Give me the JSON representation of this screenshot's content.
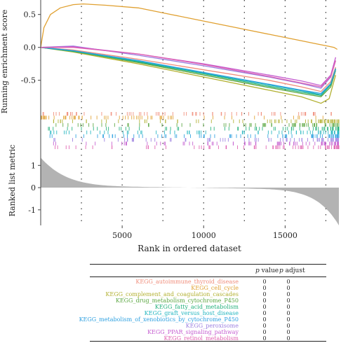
{
  "chart_data": {
    "type": "line",
    "ylabel_top": "Running enrichment score",
    "ylabel_bottom": "Ranked list metric",
    "xlabel": "Rank in ordered dataset",
    "x_ticks": [
      5000,
      10000,
      15000
    ],
    "x_tick_labels": [
      "5000",
      "10000",
      "15000"
    ],
    "xlim": [
      0,
      18300
    ],
    "es_y_ticks": [
      0.5,
      0.0,
      -0.5
    ],
    "es_y_tick_labels": [
      "0.5",
      "0.0",
      "-0.5"
    ],
    "es_ylim": [
      -0.95,
      0.72
    ],
    "metric_y_ticks": [
      1,
      0,
      -1
    ],
    "metric_y_tick_labels": [
      "1",
      "0",
      "-1"
    ],
    "metric_ylim": [
      -1.7,
      1.45
    ],
    "vlines": [
      2500,
      5000,
      7500,
      10000,
      12500,
      15000,
      17500
    ],
    "grid": "dotted vertical lines",
    "series": [
      {
        "name": "KEGG_autoimmune_thyroid_disease",
        "color": "#f08c7a",
        "x": [
          0,
          2000,
          6000,
          10000,
          14000,
          16000,
          17200,
          17800,
          18100
        ],
        "y": [
          0.0,
          -0.04,
          -0.18,
          -0.34,
          -0.5,
          -0.6,
          -0.67,
          -0.52,
          -0.3
        ]
      },
      {
        "name": "KEGG_cell_cycle",
        "color": "#e0a030",
        "x": [
          0,
          200,
          600,
          1200,
          2000,
          2600,
          4000,
          6000,
          8000,
          10000,
          12000,
          14000,
          16000,
          17000,
          17600,
          18000,
          18200
        ],
        "y": [
          0.0,
          0.3,
          0.5,
          0.6,
          0.65,
          0.66,
          0.64,
          0.6,
          0.5,
          0.4,
          0.3,
          0.2,
          0.1,
          0.05,
          0.02,
          0.0,
          -0.03
        ]
      },
      {
        "name": "KEGG_complement_and_coagulation_cascades",
        "color": "#b2b030",
        "x": [
          0,
          2000,
          6000,
          10000,
          14000,
          16000,
          17200,
          17700,
          18100
        ],
        "y": [
          0.0,
          -0.07,
          -0.25,
          -0.45,
          -0.65,
          -0.75,
          -0.85,
          -0.78,
          -0.42
        ]
      },
      {
        "name": "KEGG_drug_metabolism_cytochrome_P450",
        "color": "#5aa640",
        "x": [
          0,
          2000,
          6000,
          10000,
          14000,
          16000,
          17200,
          17800,
          18100
        ],
        "y": [
          0.0,
          -0.06,
          -0.23,
          -0.42,
          -0.61,
          -0.7,
          -0.75,
          -0.6,
          -0.35
        ]
      },
      {
        "name": "KEGG_fatty_acid_metabolism",
        "color": "#22b07a",
        "x": [
          0,
          2000,
          6000,
          10000,
          14000,
          16000,
          17200,
          17800,
          18100
        ],
        "y": [
          0.0,
          -0.06,
          -0.22,
          -0.4,
          -0.59,
          -0.68,
          -0.73,
          -0.57,
          -0.33
        ]
      },
      {
        "name": "KEGG_graft_versus_host_disease",
        "color": "#20b5bf",
        "x": [
          0,
          2000,
          6000,
          10000,
          14000,
          16000,
          17200,
          17800,
          18100
        ],
        "y": [
          0.0,
          -0.05,
          -0.21,
          -0.39,
          -0.57,
          -0.66,
          -0.72,
          -0.55,
          -0.32
        ]
      },
      {
        "name": "KEGG_metabolism_of_xenobiotics_by_cytochrome_P450",
        "color": "#2da0e0",
        "x": [
          0,
          2000,
          6000,
          10000,
          14000,
          16000,
          17200,
          17800,
          18100
        ],
        "y": [
          0.0,
          -0.05,
          -0.2,
          -0.38,
          -0.56,
          -0.65,
          -0.7,
          -0.55,
          -0.33
        ]
      },
      {
        "name": "KEGG_peroxisome",
        "color": "#9b7fe0",
        "x": [
          0,
          2000,
          6000,
          10000,
          14000,
          16000,
          17200,
          17800,
          18100
        ],
        "y": [
          0.0,
          0.02,
          -0.12,
          -0.28,
          -0.45,
          -0.55,
          -0.62,
          -0.45,
          -0.2
        ]
      },
      {
        "name": "KEGG_PPAR_signaling_pathway",
        "color": "#c45cd0",
        "x": [
          0,
          2000,
          6000,
          10000,
          14000,
          16000,
          17200,
          17800,
          18100
        ],
        "y": [
          0.0,
          0.01,
          -0.1,
          -0.25,
          -0.42,
          -0.51,
          -0.58,
          -0.42,
          -0.15
        ]
      },
      {
        "name": "KEGG_retinol_metabolism",
        "color": "#e060b0",
        "x": [
          0,
          2000,
          6000,
          10000,
          14000,
          16000,
          17200,
          17800,
          18100
        ],
        "y": [
          0.0,
          0.0,
          -0.1,
          -0.26,
          -0.44,
          -0.54,
          -0.6,
          -0.44,
          -0.2
        ]
      }
    ]
  },
  "legend_table": {
    "col_pvalue_label": "p",
    "col_pvalue_suffix": "value",
    "col_padjust_label": "p",
    "col_padjust_suffix": "adjust",
    "rows": [
      {
        "name": "KEGG_autoimmune_thyroid_disease",
        "pvalue": "0",
        "padjust": "0",
        "color": "#f08c7a"
      },
      {
        "name": "KEGG_cell_cycle",
        "pvalue": "0",
        "padjust": "0",
        "color": "#e0a030"
      },
      {
        "name": "KEGG_complement_and_coagulation_cascades",
        "pvalue": "0",
        "padjust": "0",
        "color": "#b2b030"
      },
      {
        "name": "KEGG_drug_metabolism_cytochrome_P450",
        "pvalue": "0",
        "padjust": "0",
        "color": "#5aa640"
      },
      {
        "name": "KEGG_fatty_acid_metabolism",
        "pvalue": "0",
        "padjust": "0",
        "color": "#22b07a"
      },
      {
        "name": "KEGG_graft_versus_host_disease",
        "pvalue": "0",
        "padjust": "0",
        "color": "#20b5bf"
      },
      {
        "name": "KEGG_metabolism_of_xenobiotics_by_cytochrome_P450",
        "pvalue": "0",
        "padjust": "0",
        "color": "#2da0e0"
      },
      {
        "name": "KEGG_peroxisome",
        "pvalue": "0",
        "padjust": "0",
        "color": "#9b7fe0"
      },
      {
        "name": "KEGG_PPAR_signaling_pathway",
        "pvalue": "0",
        "padjust": "0",
        "color": "#c45cd0"
      },
      {
        "name": "KEGG_retinol_metabolism",
        "pvalue": "0",
        "padjust": "0",
        "color": "#e060b0"
      }
    ]
  }
}
